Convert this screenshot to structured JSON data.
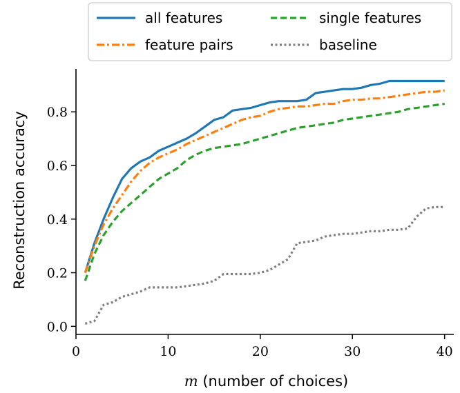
{
  "chart_data": {
    "type": "line",
    "xlabel_var": "m",
    "xlabel_rest": " (number of choices)",
    "ylabel": "Reconstruction accuracy",
    "xlim": [
      0,
      41
    ],
    "ylim": [
      -0.03,
      0.96
    ],
    "xticks": [
      0,
      10,
      20,
      30,
      40
    ],
    "yticks": [
      0.0,
      0.2,
      0.4,
      0.6,
      0.8
    ],
    "xtick_labels": [
      "0",
      "10",
      "20",
      "30",
      "40"
    ],
    "ytick_labels": [
      "0.0",
      "0.2",
      "0.4",
      "0.6",
      "0.8"
    ],
    "grid": false,
    "legend_position": "top",
    "x": [
      1,
      2,
      3,
      4,
      5,
      6,
      7,
      8,
      9,
      10,
      11,
      12,
      13,
      14,
      15,
      16,
      17,
      18,
      19,
      20,
      21,
      22,
      23,
      24,
      25,
      26,
      27,
      28,
      29,
      30,
      31,
      32,
      33,
      34,
      35,
      36,
      37,
      38,
      39,
      40
    ],
    "series": [
      {
        "name": "all features",
        "color": "#1f77b4",
        "dash": "solid",
        "values": [
          0.2,
          0.31,
          0.4,
          0.48,
          0.55,
          0.59,
          0.615,
          0.63,
          0.655,
          0.67,
          0.685,
          0.7,
          0.72,
          0.745,
          0.77,
          0.78,
          0.805,
          0.81,
          0.815,
          0.825,
          0.835,
          0.84,
          0.84,
          0.84,
          0.845,
          0.87,
          0.875,
          0.88,
          0.885,
          0.885,
          0.89,
          0.9,
          0.905,
          0.915,
          0.915,
          0.915,
          0.915,
          0.915,
          0.915,
          0.915
        ]
      },
      {
        "name": "feature pairs",
        "color": "#ff7f0e",
        "dash": "dashdot",
        "values": [
          0.2,
          0.3,
          0.38,
          0.44,
          0.49,
          0.54,
          0.58,
          0.61,
          0.63,
          0.645,
          0.66,
          0.68,
          0.695,
          0.71,
          0.725,
          0.74,
          0.755,
          0.77,
          0.78,
          0.785,
          0.8,
          0.81,
          0.815,
          0.82,
          0.82,
          0.825,
          0.83,
          0.83,
          0.84,
          0.845,
          0.845,
          0.85,
          0.85,
          0.855,
          0.86,
          0.865,
          0.87,
          0.875,
          0.875,
          0.88
        ]
      },
      {
        "name": "single features",
        "color": "#2ca02c",
        "dash": "dashed",
        "values": [
          0.17,
          0.27,
          0.34,
          0.39,
          0.43,
          0.46,
          0.49,
          0.52,
          0.55,
          0.57,
          0.59,
          0.62,
          0.64,
          0.655,
          0.665,
          0.67,
          0.675,
          0.68,
          0.69,
          0.7,
          0.71,
          0.72,
          0.73,
          0.74,
          0.745,
          0.75,
          0.755,
          0.76,
          0.77,
          0.775,
          0.78,
          0.785,
          0.79,
          0.795,
          0.8,
          0.81,
          0.815,
          0.82,
          0.825,
          0.83
        ]
      },
      {
        "name": "baseline",
        "color": "#7f7f7f",
        "dash": "dotted",
        "values": [
          0.01,
          0.02,
          0.08,
          0.09,
          0.11,
          0.12,
          0.13,
          0.145,
          0.145,
          0.145,
          0.145,
          0.15,
          0.155,
          0.16,
          0.17,
          0.195,
          0.195,
          0.195,
          0.195,
          0.2,
          0.21,
          0.23,
          0.25,
          0.31,
          0.315,
          0.32,
          0.335,
          0.34,
          0.345,
          0.345,
          0.35,
          0.355,
          0.355,
          0.36,
          0.36,
          0.365,
          0.41,
          0.44,
          0.445,
          0.445
        ]
      }
    ]
  }
}
